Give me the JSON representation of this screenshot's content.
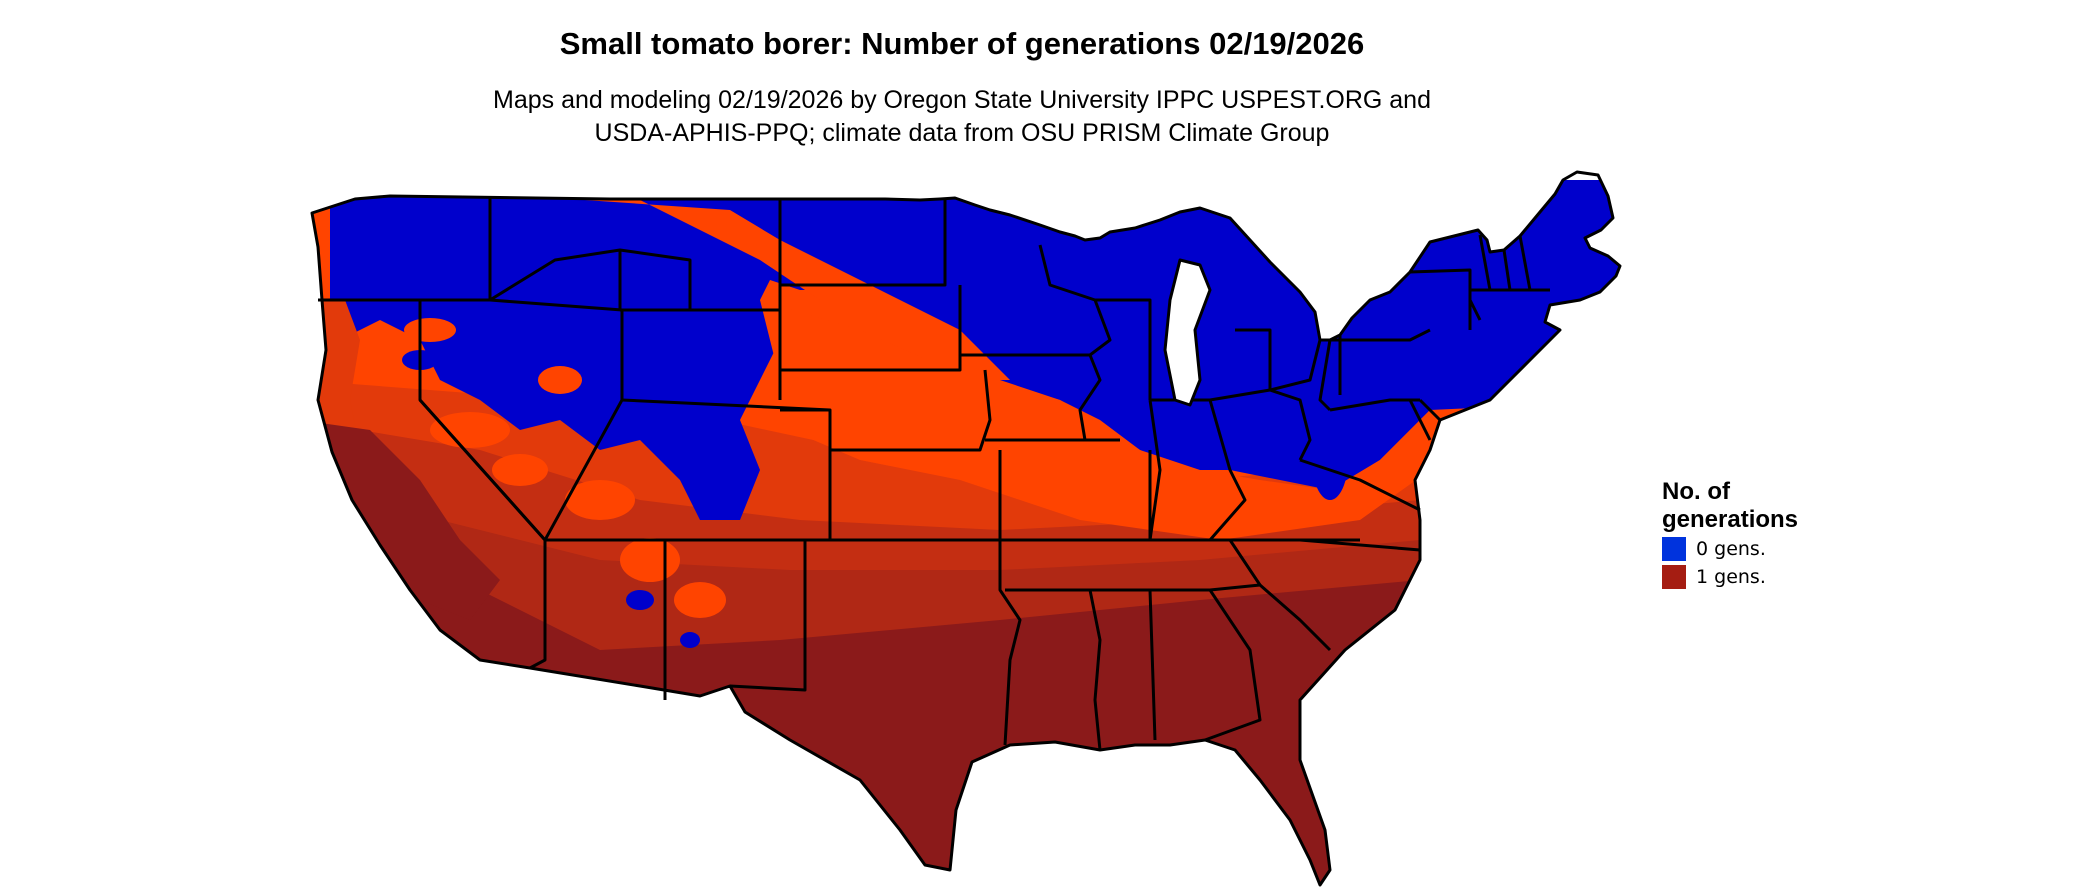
{
  "title": "Small tomato borer: Number of generations 02/19/2026",
  "subtitle_line1": "Maps and modeling 02/19/2026 by Oregon State University IPPC USPEST.ORG and",
  "subtitle_line2": "USDA-APHIS-PPQ; climate data from OSU PRISM Climate Group",
  "legend": {
    "title_line1": "No. of",
    "title_line2": "generations",
    "items": [
      {
        "label": "0 gens.",
        "color": "#0033dd"
      },
      {
        "label": "1 gens.",
        "color": "#a51d12"
      }
    ]
  },
  "map": {
    "region": "Contiguous United States",
    "palette": {
      "zero_gens": "#0000cc",
      "one_gen_light": "#ff4400",
      "one_gen_mid": "#e23a0b",
      "one_gen_dark": "#c42e12",
      "one_gen_darkest": "#8b1a1a"
    }
  }
}
